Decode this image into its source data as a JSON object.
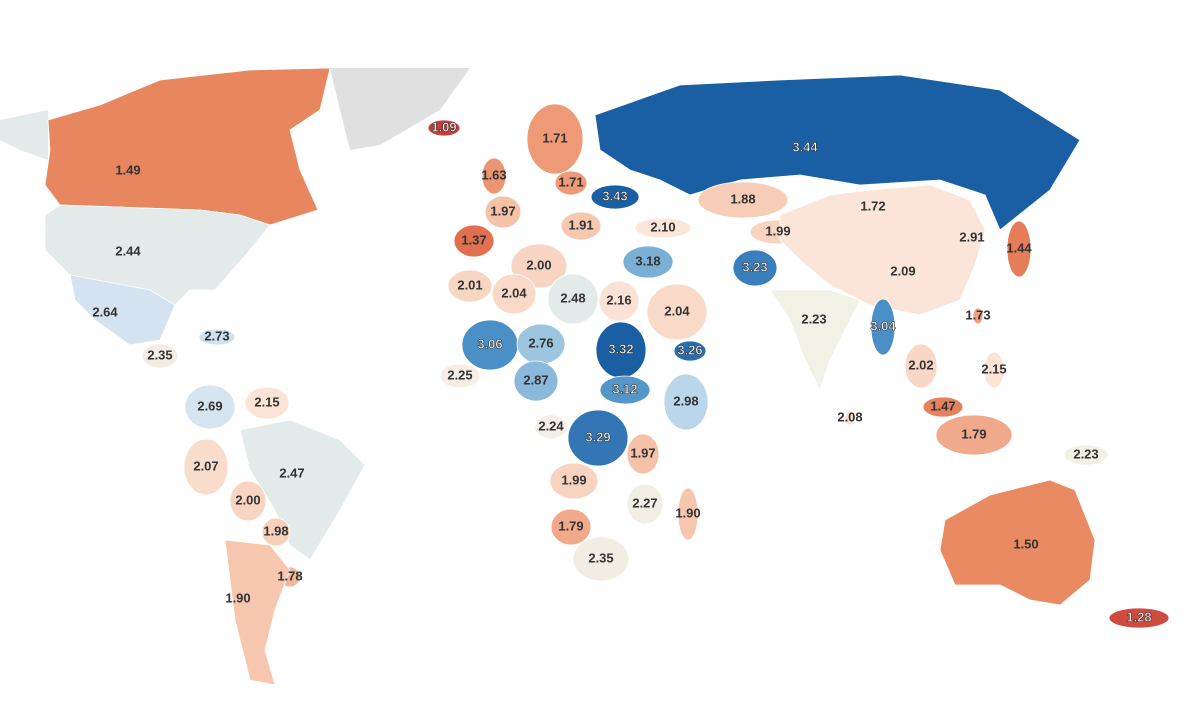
{
  "chart_data": {
    "type": "choropleth",
    "values": [
      1.49,
      2.44,
      2.64,
      2.73,
      2.35,
      2.69,
      2.15,
      2.07,
      2.47,
      2.0,
      1.98,
      1.78,
      1.9,
      1.09,
      1.63,
      1.71,
      1.71,
      3.43,
      1.97,
      1.91,
      2.1,
      1.37,
      3.44,
      1.88,
      1.72,
      1.99,
      2.91,
      1.44,
      3.18,
      3.23,
      2.09,
      2.0,
      2.01,
      2.04,
      2.48,
      2.16,
      2.04,
      2.23,
      3.04,
      1.73,
      3.06,
      2.76,
      3.32,
      3.26,
      2.02,
      2.15,
      2.25,
      2.87,
      3.12,
      2.98,
      1.47,
      2.08,
      2.24,
      1.79,
      3.29,
      1.97,
      2.23,
      1.99,
      2.27,
      1.9,
      1.79,
      2.35,
      1.5,
      1.28
    ],
    "value_labels": [
      "1.49",
      "2.44",
      "2.64",
      "2.73",
      "2.35",
      "2.69",
      "2.15",
      "2.07",
      "2.47",
      "2.00",
      "1.98",
      "1.78",
      "1.90",
      "1.09",
      "1.63",
      "1.71",
      "1.71",
      "3.43",
      "1.97",
      "1.91",
      "2.10",
      "1.37",
      "3.44",
      "1.88",
      "1.72",
      "1.99",
      "2.91",
      "1.44",
      "3.18",
      "3.23",
      "2.09",
      "2.00",
      "2.01",
      "2.04",
      "2.48",
      "2.16",
      "2.04",
      "2.23",
      "3.04",
      "1.73",
      "3.06",
      "2.76",
      "3.32",
      "3.26",
      "2.02",
      "2.15",
      "2.25",
      "2.87",
      "3.12",
      "2.98",
      "1.47",
      "2.08",
      "2.24",
      "1.79",
      "3.29",
      "1.97",
      "2.23",
      "1.99",
      "2.27",
      "1.90",
      "1.79",
      "2.35",
      "1.50",
      "1.28"
    ],
    "colors": [
      "#e8875f",
      "#e3eaea",
      "#d4e3ef",
      "#cfe1ee",
      "#f2ece4",
      "#d5e4ef",
      "#fbe3d6",
      "#f9ddcc",
      "#e3eaea",
      "#f8d5c3",
      "#f8d0bc",
      "#f4b69b",
      "#f6c6ae",
      "#c63b3b",
      "#ec9571",
      "#ee9a76",
      "#ee9a76",
      "#1a5fa3",
      "#f5c2a8",
      "#f6c8b0",
      "#fbe6da",
      "#e07050",
      "#1a5fa3",
      "#f7cdb8",
      "#ee9c7a",
      "#f8d3c0",
      "#9ac4e0",
      "#e47d58",
      "#7ab0d6",
      "#3a7fbb",
      "#fbe5d8",
      "#f8d5c3",
      "#f8d6c4",
      "#f9d9c8",
      "#e3eaea",
      "#fbe2d5",
      "#f9d9c8",
      "#f2f1e6",
      "#4a8fc6",
      "#f0a283",
      "#4a8fc6",
      "#9dc5df",
      "#1a5fa3",
      "#2a6dae",
      "#f8d7c6",
      "#fbe3d6",
      "#f6ede5",
      "#8ab9dc",
      "#5597c9",
      "#b9d6ea",
      "#e5815d",
      "#f9dfcf",
      "#f4eee6",
      "#f1a98b",
      "#3276b5",
      "#f5c2a8",
      "#f2f1e6",
      "#f8d3c0",
      "#f1efe3",
      "#f6c6ae",
      "#f1a98b",
      "#f2ece4",
      "#ea8a62",
      "#cf4a3f"
    ]
  }
}
